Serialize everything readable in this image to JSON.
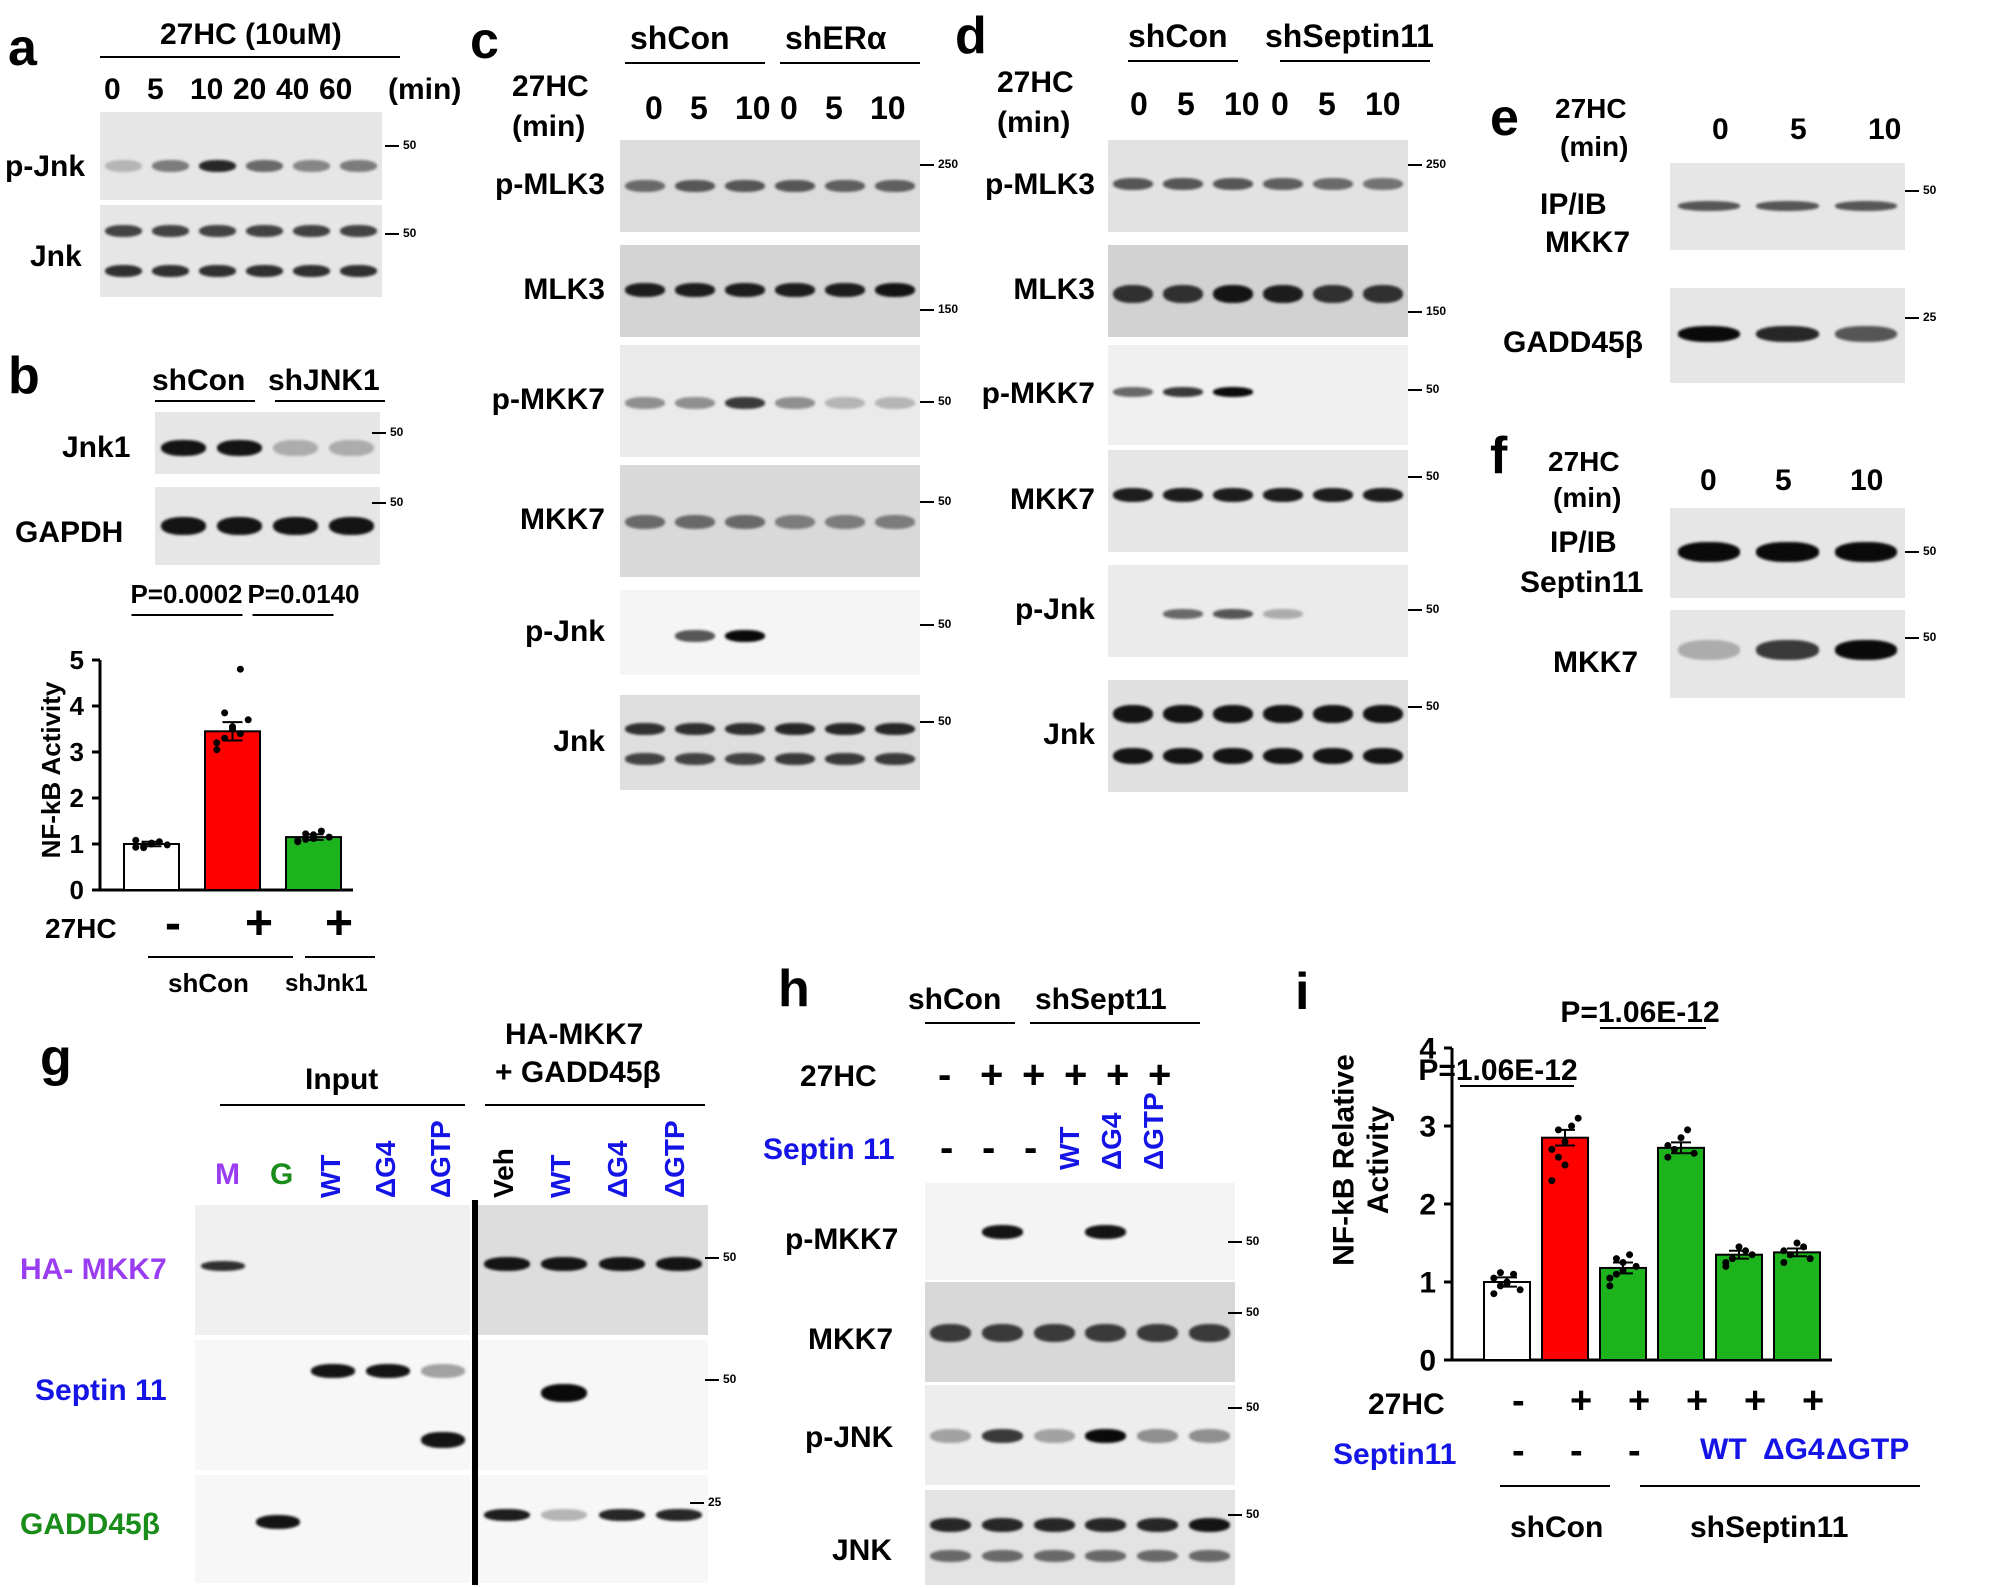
{
  "panels": {
    "a": {
      "letter": "a",
      "treatment": "27HC (10uM)",
      "times": [
        "0",
        "5",
        "10",
        "20",
        "40",
        "60"
      ],
      "unit": "(min)",
      "rows": [
        "p-Jnk",
        "Jnk"
      ],
      "mw": [
        "50",
        "50"
      ]
    },
    "b": {
      "letter": "b",
      "groups": [
        "shCon",
        "shJNK1"
      ],
      "rows": [
        "Jnk1",
        "GAPDH"
      ],
      "mw": [
        "50",
        "50"
      ],
      "p_values": [
        "P=0.0002",
        "P=0.0140"
      ],
      "treatment_label": "27HC",
      "treatment_signs": [
        "-",
        "+",
        "+"
      ],
      "x_groups": [
        "shCon",
        "shJnk1"
      ]
    },
    "c": {
      "letter": "c",
      "groups": [
        "shCon",
        "shERα"
      ],
      "treatment": "27HC",
      "unit": "(min)",
      "times": [
        "0",
        "5",
        "10",
        "0",
        "5",
        "10"
      ],
      "rows": [
        "p-MLK3",
        "MLK3",
        "p-MKK7",
        "MKK7",
        "p-Jnk",
        "Jnk"
      ],
      "mw": [
        "250",
        "150",
        "50",
        "50",
        "50",
        "50"
      ]
    },
    "d": {
      "letter": "d",
      "groups": [
        "shCon",
        "shSeptin11"
      ],
      "treatment": "27HC",
      "unit": "(min)",
      "times": [
        "0",
        "5",
        "10",
        "0",
        "5",
        "10"
      ],
      "rows": [
        "p-MLK3",
        "MLK3",
        "p-MKK7",
        "MKK7",
        "p-Jnk",
        "Jnk"
      ],
      "mw": [
        "250",
        "150",
        "50",
        "50",
        "50",
        "50"
      ]
    },
    "e": {
      "letter": "e",
      "treatment": "27HC",
      "unit": "(min)",
      "times": [
        "0",
        "5",
        "10"
      ],
      "rows": [
        "IP/IB",
        "MKK7",
        "GADD45β"
      ],
      "mw": [
        "50",
        "25"
      ]
    },
    "f": {
      "letter": "f",
      "treatment": "27HC",
      "unit": "(min)",
      "times": [
        "0",
        "5",
        "10"
      ],
      "rows": [
        "IP/IB",
        "Septin11",
        "MKK7"
      ],
      "mw": [
        "50",
        "50"
      ]
    },
    "g": {
      "letter": "g",
      "input_label": "Input",
      "pull_label_1": "HA-MKK7",
      "pull_label_2": "+ GADD45β",
      "lanes_left": [
        "M",
        "G",
        "WT",
        "ΔG4",
        "ΔGTP"
      ],
      "lanes_right": [
        "Veh",
        "WT",
        "ΔG4",
        "ΔGTP"
      ],
      "rows": [
        "HA- MKK7",
        "Septin 11",
        "GADD45β"
      ],
      "mw": [
        "50",
        "50",
        "25"
      ]
    },
    "h": {
      "letter": "h",
      "groups": [
        "shCon",
        "shSept11"
      ],
      "treatment": "27HC",
      "treatment_signs": [
        "-",
        "+",
        "+",
        "+",
        "+",
        "+"
      ],
      "septin_label": "Septin 11",
      "septin_signs": [
        "-",
        "-",
        "-",
        "WT",
        "ΔG4",
        "ΔGTP"
      ],
      "rows": [
        "p-MKK7",
        "MKK7",
        "p-JNK",
        "JNK"
      ],
      "mw": [
        "50",
        "50",
        "50",
        "50"
      ]
    },
    "i": {
      "letter": "i",
      "p_top": "P=1.06E-12",
      "p_inner": "P=1.06E-12",
      "treatment_label": "27HC",
      "treatment_signs": [
        "-",
        "+",
        "+",
        "+",
        "+",
        "+"
      ],
      "septin_label": "Septin11",
      "septin_signs": [
        "-",
        "-",
        "-",
        "WT",
        "ΔG4",
        "ΔGTP"
      ],
      "x_groups": [
        "shCon",
        "shSeptin11"
      ]
    }
  },
  "chart_data": [
    {
      "panel": "b",
      "type": "bar",
      "ylabel": "NF-kB Activity",
      "ylim": [
        0,
        5
      ],
      "yticks": [
        "0",
        "1",
        "2",
        "3",
        "4",
        "5"
      ],
      "categories": [
        "-",
        "+",
        "+"
      ],
      "values": [
        1.0,
        3.45,
        1.15
      ],
      "errors": [
        0.05,
        0.2,
        0.06
      ],
      "colors": [
        "#ffffff",
        "#ff0000",
        "#1db31d"
      ],
      "points": [
        [
          0.93,
          0.96,
          1.0,
          1.05,
          0.98,
          1.08,
          0.92,
          1.02
        ],
        [
          3.05,
          3.3,
          3.55,
          3.4,
          3.7,
          3.2,
          3.85,
          3.5,
          4.8
        ],
        [
          1.05,
          1.1,
          1.2,
          1.28,
          1.15,
          1.08,
          1.22,
          1.12
        ]
      ]
    },
    {
      "panel": "i",
      "type": "bar",
      "ylabel": "NF-kB Relative Activity",
      "ylim": [
        0,
        4
      ],
      "yticks": [
        "0",
        "1",
        "2",
        "3",
        "4"
      ],
      "categories": [
        "-",
        "+",
        "+",
        "+",
        "+",
        "+"
      ],
      "values": [
        1.0,
        2.85,
        1.18,
        2.72,
        1.35,
        1.38
      ],
      "errors": [
        0.06,
        0.1,
        0.07,
        0.07,
        0.05,
        0.05
      ],
      "colors": [
        "#ffffff",
        "#ff0000",
        "#1db31d",
        "#1db31d",
        "#1db31d",
        "#1db31d"
      ],
      "points": [
        [
          0.85,
          0.95,
          1.0,
          1.1,
          0.9,
          1.05,
          1.12,
          0.98
        ],
        [
          2.3,
          2.6,
          2.8,
          3.0,
          3.1,
          2.7,
          2.95,
          2.5
        ],
        [
          0.95,
          1.1,
          1.25,
          1.35,
          1.2,
          1.05,
          1.3,
          1.15
        ],
        [
          2.6,
          2.7,
          2.85,
          2.95,
          2.65,
          2.75
        ],
        [
          1.2,
          1.3,
          1.45,
          1.4,
          1.35,
          1.25
        ],
        [
          1.25,
          1.35,
          1.5,
          1.45,
          1.3,
          1.4
        ]
      ]
    }
  ]
}
